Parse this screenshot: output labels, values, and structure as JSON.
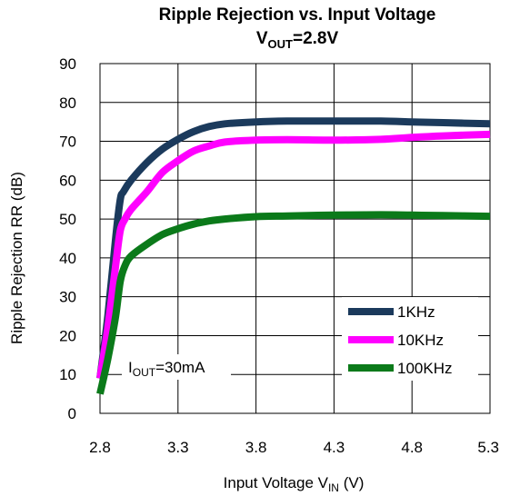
{
  "chart_data": {
    "type": "line",
    "title": {
      "line1": "Ripple Rejection vs. Input Voltage",
      "line2_main": "V",
      "line2_sub": "OUT",
      "line2_rest": "=2.8V"
    },
    "xlabel": {
      "main": "Input Voltage V",
      "sub": "IN",
      "rest": " (V)"
    },
    "ylabel": "Ripple Rejection RR (dB)",
    "xlim": [
      2.8,
      5.3
    ],
    "ylim": [
      0,
      90
    ],
    "xticks": [
      "2.8",
      "3.3",
      "3.8",
      "4.3",
      "4.8",
      "5.3"
    ],
    "yticks": [
      "0",
      "10",
      "20",
      "30",
      "40",
      "50",
      "60",
      "70",
      "80",
      "90"
    ],
    "grid": true,
    "legend_position": "bottom-right",
    "annotation": {
      "main": "I",
      "sub": "OUT",
      "rest": "=30mA"
    },
    "series": [
      {
        "name": "1KHz",
        "color": "#1b3a5c",
        "points": [
          [
            2.8,
            9
          ],
          [
            2.85,
            25
          ],
          [
            2.9,
            45
          ],
          [
            2.93,
            55
          ],
          [
            2.95,
            57
          ],
          [
            3.0,
            60
          ],
          [
            3.1,
            64.5
          ],
          [
            3.2,
            68
          ],
          [
            3.3,
            70.5
          ],
          [
            3.4,
            72.5
          ],
          [
            3.5,
            73.8
          ],
          [
            3.6,
            74.5
          ],
          [
            3.8,
            75
          ],
          [
            4.0,
            75.2
          ],
          [
            4.3,
            75.2
          ],
          [
            4.6,
            75.2
          ],
          [
            4.8,
            75
          ],
          [
            5.0,
            74.8
          ],
          [
            5.3,
            74.5
          ]
        ]
      },
      {
        "name": "10KHz",
        "color": "#ff00ff",
        "points": [
          [
            2.8,
            9
          ],
          [
            2.85,
            22
          ],
          [
            2.9,
            38
          ],
          [
            2.93,
            47
          ],
          [
            2.96,
            50
          ],
          [
            3.0,
            52.5
          ],
          [
            3.1,
            57
          ],
          [
            3.2,
            62
          ],
          [
            3.3,
            65
          ],
          [
            3.4,
            67.5
          ],
          [
            3.5,
            68.8
          ],
          [
            3.6,
            69.8
          ],
          [
            3.8,
            70.3
          ],
          [
            4.0,
            70.4
          ],
          [
            4.3,
            70.3
          ],
          [
            4.6,
            70.5
          ],
          [
            4.8,
            71
          ],
          [
            5.0,
            71.4
          ],
          [
            5.3,
            71.8
          ]
        ]
      },
      {
        "name": "100KHz",
        "color": "#0b7a1a",
        "points": [
          [
            2.8,
            5
          ],
          [
            2.85,
            14
          ],
          [
            2.9,
            25
          ],
          [
            2.93,
            34
          ],
          [
            2.96,
            38
          ],
          [
            3.0,
            40.5
          ],
          [
            3.1,
            43.5
          ],
          [
            3.2,
            46
          ],
          [
            3.3,
            47.5
          ],
          [
            3.4,
            48.7
          ],
          [
            3.5,
            49.5
          ],
          [
            3.6,
            50
          ],
          [
            3.8,
            50.6
          ],
          [
            4.0,
            50.8
          ],
          [
            4.3,
            51
          ],
          [
            4.6,
            51.1
          ],
          [
            4.8,
            51
          ],
          [
            5.0,
            50.9
          ],
          [
            5.3,
            50.7
          ]
        ]
      }
    ]
  }
}
